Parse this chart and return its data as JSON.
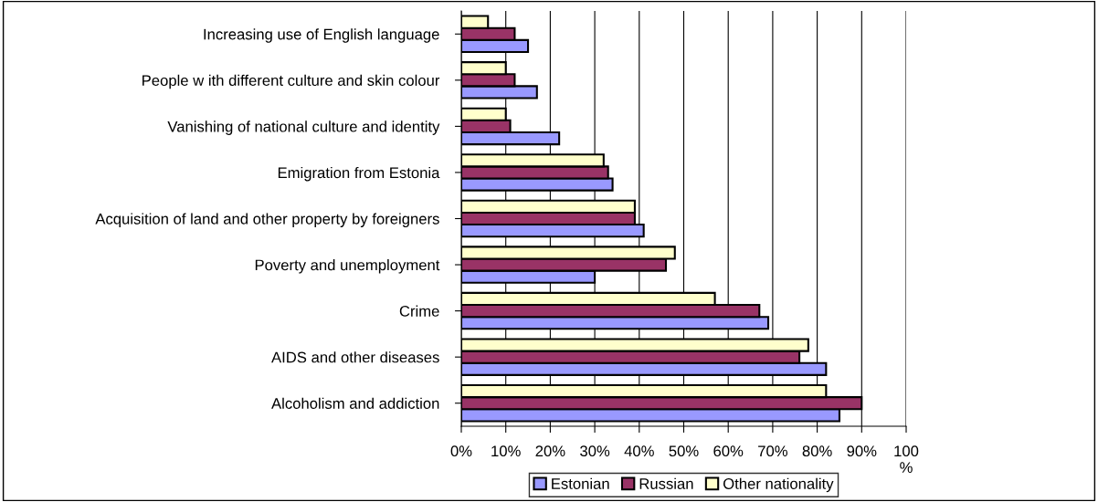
{
  "chart_data": {
    "type": "bar",
    "orientation": "horizontal",
    "categories": [
      "Increasing use of English language",
      "People w ith different culture and skin colour",
      "Vanishing of national culture and identity",
      "Emigration from Estonia",
      "Acquisition of land and other property by foreigners",
      "Poverty and unemployment",
      "Crime",
      "AIDS and other diseases",
      "Alcoholism and addiction"
    ],
    "series": [
      {
        "name": "Estonian",
        "color": "#9999ff",
        "values": [
          15,
          17,
          22,
          34,
          41,
          30,
          69,
          82,
          85
        ]
      },
      {
        "name": "Russian",
        "color": "#993366",
        "values": [
          12,
          12,
          11,
          33,
          39,
          46,
          67,
          76,
          90
        ]
      },
      {
        "name": "Other nationality",
        "color": "#ffffcc",
        "values": [
          6,
          10,
          10,
          32,
          39,
          48,
          57,
          78,
          82
        ]
      }
    ],
    "xlim": [
      0,
      100
    ],
    "xticks": [
      {
        "value": 0,
        "label": "0%"
      },
      {
        "value": 10,
        "label": "10%"
      },
      {
        "value": 20,
        "label": "20%"
      },
      {
        "value": 30,
        "label": "30%"
      },
      {
        "value": 40,
        "label": "40%"
      },
      {
        "value": 50,
        "label": "50%"
      },
      {
        "value": 60,
        "label": "60%"
      },
      {
        "value": 70,
        "label": "70%"
      },
      {
        "value": 80,
        "label": "80%"
      },
      {
        "value": 90,
        "label": "90%"
      },
      {
        "value": 100,
        "label": "100\n%"
      }
    ],
    "grid": "x",
    "legend": "bottom"
  }
}
